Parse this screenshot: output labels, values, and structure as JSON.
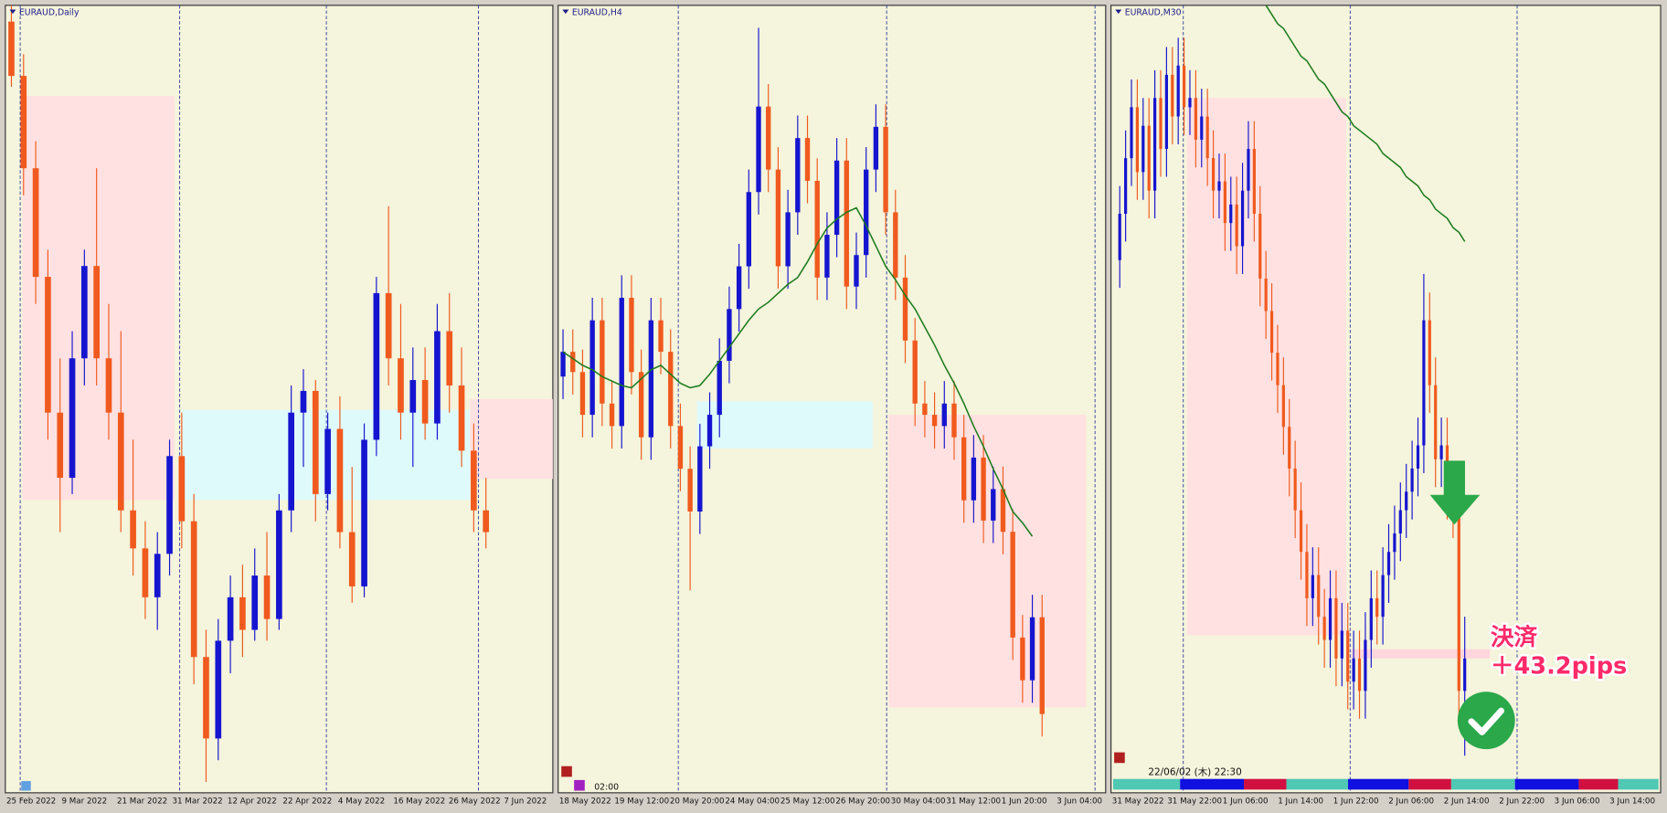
{
  "chart_data": [
    {
      "type": "candlestick",
      "title": "EURAUD,Daily",
      "x_labels": [
        "25 Feb 2022",
        "9 Mar 2022",
        "21 Mar 2022",
        "31 Mar 2022",
        "12 Apr 2022",
        "22 Apr 2022",
        "4 May 2022",
        "16 May 2022",
        "26 May 2022",
        "7 Jun 2022"
      ],
      "xlim": [
        -0.5,
        44.5
      ],
      "ylim": [
        1.43,
        1.575
      ],
      "up_color": "#1515d0",
      "down_color": "#f05a1e",
      "open": [
        1.572,
        1.562,
        1.545,
        1.525,
        1.5,
        1.488,
        1.51,
        1.527,
        1.51,
        1.5,
        1.482,
        1.475,
        1.466,
        1.474,
        1.492,
        1.48,
        1.455,
        1.44,
        1.458,
        1.466,
        1.46,
        1.47,
        1.462,
        1.482,
        1.5,
        1.504,
        1.485,
        1.497,
        1.478,
        1.468,
        1.495,
        1.522,
        1.51,
        1.5,
        1.506,
        1.498,
        1.515,
        1.505,
        1.493,
        1.482
      ],
      "high": [
        1.575,
        1.566,
        1.55,
        1.53,
        1.51,
        1.515,
        1.53,
        1.545,
        1.52,
        1.515,
        1.495,
        1.48,
        1.478,
        1.495,
        1.5,
        1.485,
        1.46,
        1.462,
        1.47,
        1.472,
        1.475,
        1.478,
        1.485,
        1.505,
        1.508,
        1.506,
        1.5,
        1.503,
        1.49,
        1.498,
        1.525,
        1.538,
        1.52,
        1.512,
        1.512,
        1.52,
        1.522,
        1.512,
        1.498,
        1.488
      ],
      "low": [
        1.56,
        1.54,
        1.52,
        1.495,
        1.478,
        1.485,
        1.505,
        1.505,
        1.495,
        1.478,
        1.47,
        1.462,
        1.46,
        1.47,
        1.475,
        1.45,
        1.432,
        1.436,
        1.452,
        1.455,
        1.458,
        1.458,
        1.46,
        1.478,
        1.49,
        1.48,
        1.482,
        1.475,
        1.465,
        1.466,
        1.492,
        1.505,
        1.495,
        1.49,
        1.495,
        1.495,
        1.5,
        1.49,
        1.478,
        1.475
      ],
      "close": [
        1.562,
        1.545,
        1.525,
        1.5,
        1.488,
        1.51,
        1.527,
        1.51,
        1.5,
        1.482,
        1.475,
        1.466,
        1.474,
        1.492,
        1.48,
        1.455,
        1.44,
        1.458,
        1.466,
        1.46,
        1.47,
        1.462,
        1.482,
        1.5,
        1.504,
        1.485,
        1.497,
        1.478,
        1.468,
        1.495,
        1.522,
        1.51,
        1.5,
        1.506,
        1.498,
        1.515,
        1.505,
        1.493,
        1.482,
        1.478
      ],
      "zones": [
        {
          "x": [
            0.9,
            13.4
          ],
          "y": [
            1.4839,
            1.5583
          ],
          "color": "#ffe1e1"
        },
        {
          "x": [
            14,
            37.7
          ],
          "y": [
            1.4839,
            1.5005
          ],
          "color": "#dffafa"
        },
        {
          "x": [
            37.7,
            44.5
          ],
          "y": [
            1.4878,
            1.5025
          ],
          "color": "#ffe1e1"
        }
      ]
    },
    {
      "type": "candlestick",
      "title": "EURAUD,H4",
      "time_label": "02:00",
      "x_labels": [
        "18 May 2022",
        "19 May 12:00",
        "20 May 20:00",
        "24 May 04:00",
        "25 May 12:00",
        "26 May 20:00",
        "30 May 04:00",
        "31 May 12:00",
        "1 Jun 20:00",
        "3 Jun 04:00"
      ],
      "xlim": [
        -0.5,
        55.5
      ],
      "ylim": [
        1.48,
        1.515
      ],
      "up_color": "#1515d0",
      "down_color": "#f05a1e",
      "open": [
        1.4985,
        1.4996,
        1.4987,
        1.4968,
        1.501,
        1.4973,
        1.4963,
        1.502,
        1.4987,
        1.4958,
        1.501,
        1.4996,
        1.4963,
        1.4944,
        1.4925,
        1.4954,
        1.4968,
        1.4992,
        1.5015,
        1.5034,
        1.5067,
        1.5105,
        1.5077,
        1.5034,
        1.5058,
        1.5091,
        1.5072,
        1.5029,
        1.5048,
        1.5081,
        1.5025,
        1.5039,
        1.5077,
        1.5096,
        1.5058,
        1.5029,
        1.5001,
        1.4973,
        1.4968,
        1.4963,
        1.4973,
        1.4958,
        1.493,
        1.4949,
        1.4921,
        1.4935,
        1.4916,
        1.4869,
        1.485,
        1.4878
      ],
      "high": [
        1.5006,
        1.5006,
        1.4997,
        1.502,
        1.502,
        1.4983,
        1.503,
        1.503,
        1.4997,
        1.502,
        1.502,
        1.5006,
        1.4973,
        1.4954,
        1.4964,
        1.4978,
        1.5002,
        1.5025,
        1.5044,
        1.5077,
        1.514,
        1.5115,
        1.5087,
        1.5068,
        1.5101,
        1.5101,
        1.5082,
        1.5058,
        1.5091,
        1.5091,
        1.5049,
        1.5087,
        1.5106,
        1.5106,
        1.5068,
        1.5039,
        1.5011,
        1.4983,
        1.4978,
        1.4983,
        1.4983,
        1.4968,
        1.4959,
        1.4959,
        1.4945,
        1.4945,
        1.4926,
        1.4879,
        1.4888,
        1.4888
      ],
      "low": [
        1.4975,
        1.4977,
        1.4958,
        1.4958,
        1.4963,
        1.4953,
        1.4953,
        1.4977,
        1.4948,
        1.4948,
        1.4986,
        1.4953,
        1.4934,
        1.489,
        1.4915,
        1.4944,
        1.4958,
        1.4982,
        1.5005,
        1.5024,
        1.5057,
        1.5067,
        1.5024,
        1.5024,
        1.5048,
        1.5062,
        1.5019,
        1.5019,
        1.5038,
        1.5015,
        1.5015,
        1.5029,
        1.5067,
        1.5048,
        1.5019,
        1.4991,
        1.4963,
        1.4958,
        1.4953,
        1.4953,
        1.4948,
        1.492,
        1.492,
        1.4911,
        1.4911,
        1.4906,
        1.4859,
        1.484,
        1.484,
        1.4825
      ],
      "close": [
        1.4996,
        1.4987,
        1.4968,
        1.501,
        1.4973,
        1.4963,
        1.502,
        1.4987,
        1.4958,
        1.501,
        1.4996,
        1.4963,
        1.4944,
        1.4925,
        1.4954,
        1.4968,
        1.4992,
        1.5015,
        1.5034,
        1.5067,
        1.5105,
        1.5077,
        1.5034,
        1.5058,
        1.5091,
        1.5072,
        1.5029,
        1.5048,
        1.5081,
        1.5025,
        1.5039,
        1.5077,
        1.5096,
        1.5058,
        1.5029,
        1.5001,
        1.4973,
        1.4968,
        1.4963,
        1.4973,
        1.4958,
        1.493,
        1.4949,
        1.4921,
        1.4935,
        1.4916,
        1.4869,
        1.485,
        1.4878,
        1.4835
      ],
      "ma": {
        "color": "#1a7a1a",
        "values": [
          1.4996,
          1.4993,
          1.499,
          1.4988,
          1.4985,
          1.4983,
          1.4981,
          1.498,
          1.4984,
          1.4988,
          1.499,
          1.4986,
          1.4982,
          1.498,
          1.4981,
          1.4986,
          1.4992,
          1.4998,
          1.5004,
          1.501,
          1.5015,
          1.5018,
          1.5022,
          1.5026,
          1.5029,
          1.5036,
          1.5044,
          1.5051,
          1.5055,
          1.5058,
          1.506,
          1.5052,
          1.5043,
          1.5034,
          1.5028,
          1.5021,
          1.5015,
          1.5007,
          1.4999,
          1.499,
          1.4982,
          1.4973,
          1.4963,
          1.4954,
          1.4944,
          1.4935,
          1.4925,
          1.492,
          1.4914,
          null
        ]
      },
      "zones": [
        {
          "x": [
            33.3,
            53.5
          ],
          "y": [
            1.4838,
            1.4968
          ],
          "color": "#ffe1e1"
        },
        {
          "x": [
            13.7,
            31.7
          ],
          "y": [
            1.4953,
            1.4974
          ],
          "color": "#dffafa"
        }
      ]
    },
    {
      "type": "candlestick",
      "title": "EURAUD,M30",
      "time_label": "22/06/02 (木) 22:30",
      "annotations": [
        "決済",
        "＋43.2pips"
      ],
      "x_labels": [
        "31 May 2022",
        "31 May 22:00",
        "1 Jun 06:00",
        "1 Jun 14:00",
        "1 Jun 22:00",
        "2 Jun 06:00",
        "2 Jun 14:00",
        "2 Jun 22:00",
        "3 Jun 06:00",
        "3 Jun 14:00"
      ],
      "xlim": [
        -1.5,
        92.5
      ],
      "ylim": [
        1.483,
        1.5
      ],
      "up_color": "#1515d0",
      "down_color": "#f05a1e",
      "open": [
        1.4945,
        1.4955,
        1.4967,
        1.4978,
        1.4964,
        1.4974,
        1.496,
        1.498,
        1.4969,
        1.4985,
        1.4976,
        1.4987,
        1.4978,
        1.498,
        1.4971,
        1.4976,
        1.4967,
        1.496,
        1.4962,
        1.4953,
        1.4957,
        1.4948,
        1.496,
        1.4969,
        1.4955,
        1.4941,
        1.4934,
        1.4925,
        1.4918,
        1.4909,
        1.49,
        1.4891,
        1.4882,
        1.4872,
        1.4877,
        1.4868,
        1.4863,
        1.4872,
        1.4859,
        1.4865,
        1.4854,
        1.4859,
        1.4852,
        1.4863,
        1.4872,
        1.4868,
        1.4877,
        1.4882,
        1.4886,
        1.4891,
        1.4895,
        1.49,
        1.4905,
        1.4932,
        1.4918,
        1.4902,
        1.4905,
        1.4895,
        1.4891,
        1.4852
      ],
      "high": [
        1.4961,
        1.4973,
        1.4984,
        1.4984,
        1.498,
        1.498,
        1.4986,
        1.4986,
        1.4991,
        1.4991,
        1.4993,
        1.4993,
        1.4986,
        1.4986,
        1.4982,
        1.4982,
        1.4973,
        1.4968,
        1.4968,
        1.4963,
        1.4963,
        1.4966,
        1.4975,
        1.4975,
        1.4961,
        1.4947,
        1.494,
        1.4931,
        1.4924,
        1.4915,
        1.4906,
        1.4897,
        1.4888,
        1.4883,
        1.4883,
        1.4874,
        1.4878,
        1.4878,
        1.4871,
        1.4871,
        1.4865,
        1.4865,
        1.4869,
        1.4878,
        1.4878,
        1.4883,
        1.4888,
        1.4892,
        1.4897,
        1.4901,
        1.4906,
        1.4911,
        1.4942,
        1.4938,
        1.4924,
        1.4911,
        1.4911,
        1.4901,
        1.4897,
        1.4868
      ],
      "low": [
        1.4939,
        1.4949,
        1.4961,
        1.4958,
        1.4958,
        1.4954,
        1.4954,
        1.4963,
        1.4963,
        1.497,
        1.497,
        1.4972,
        1.4972,
        1.4965,
        1.4965,
        1.4961,
        1.4954,
        1.4954,
        1.4947,
        1.4947,
        1.4942,
        1.4942,
        1.4954,
        1.4949,
        1.4935,
        1.4928,
        1.4919,
        1.4912,
        1.4903,
        1.4894,
        1.4885,
        1.4876,
        1.4866,
        1.4866,
        1.4862,
        1.4857,
        1.4857,
        1.4853,
        1.4853,
        1.4848,
        1.4848,
        1.4846,
        1.4846,
        1.4857,
        1.4862,
        1.4862,
        1.4871,
        1.4876,
        1.488,
        1.4885,
        1.4889,
        1.4894,
        1.4899,
        1.4912,
        1.4896,
        1.4896,
        1.4889,
        1.4885,
        1.4846,
        1.4838
      ],
      "close": [
        1.4955,
        1.4967,
        1.4978,
        1.4964,
        1.4974,
        1.496,
        1.498,
        1.4969,
        1.4985,
        1.4976,
        1.4987,
        1.4978,
        1.498,
        1.4971,
        1.4976,
        1.4967,
        1.496,
        1.4962,
        1.4953,
        1.4957,
        1.4948,
        1.496,
        1.4969,
        1.4955,
        1.4941,
        1.4934,
        1.4925,
        1.4918,
        1.4909,
        1.49,
        1.4891,
        1.4882,
        1.4872,
        1.4877,
        1.4868,
        1.4863,
        1.4872,
        1.4859,
        1.4865,
        1.4854,
        1.4859,
        1.4852,
        1.4863,
        1.4872,
        1.4868,
        1.4877,
        1.4882,
        1.4886,
        1.4891,
        1.4895,
        1.49,
        1.4905,
        1.4932,
        1.4918,
        1.4902,
        1.4905,
        1.4895,
        1.4891,
        1.4852,
        1.4859
      ],
      "ma": {
        "color": "#1a7a1a",
        "values": [
          null,
          null,
          null,
          null,
          null,
          null,
          null,
          null,
          null,
          null,
          null,
          null,
          null,
          null,
          null,
          null,
          null,
          null,
          null,
          null,
          null,
          null,
          null,
          null,
          null,
          1.5,
          1.4998,
          1.4996,
          1.4995,
          1.4993,
          1.4991,
          1.4989,
          1.4988,
          1.4986,
          1.4984,
          1.4983,
          1.4981,
          1.4979,
          1.4977,
          1.4976,
          1.4974,
          1.4973,
          1.4972,
          1.4971,
          1.497,
          1.4968,
          1.4967,
          1.4966,
          1.4965,
          1.4963,
          1.4962,
          1.4961,
          1.4959,
          1.4958,
          1.4956,
          1.4955,
          1.4954,
          1.4952,
          1.4951,
          1.4949
        ]
      },
      "zones": [
        {
          "x": [
            11.5,
            38.7
          ],
          "y": [
            1.4864,
            1.498
          ],
          "color": "#ffe1e1"
        },
        {
          "x": [
            39.6,
            63.3
          ],
          "y": [
            1.4859,
            1.4861
          ],
          "color": "#ffd6dc"
        }
      ]
    }
  ]
}
